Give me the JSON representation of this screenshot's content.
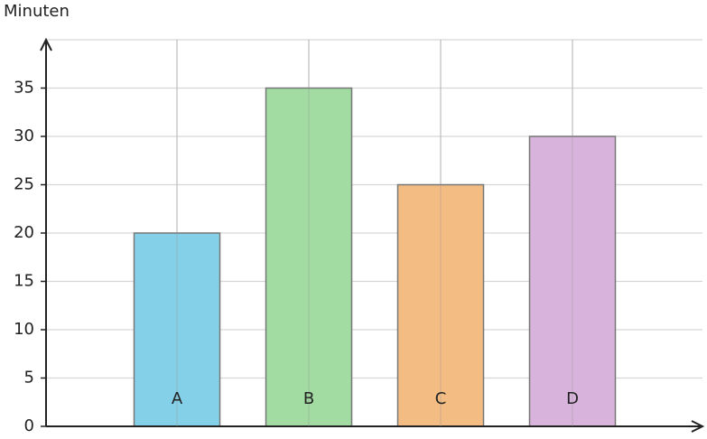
{
  "chart_data": {
    "type": "bar",
    "y_label": "Minuten",
    "categories": [
      "A",
      "B",
      "C",
      "D"
    ],
    "values": [
      20,
      35,
      25,
      30
    ],
    "colors": [
      "#85d0e9",
      "#a2dca2",
      "#f3bc82",
      "#d8b3dc"
    ],
    "ylim": [
      0,
      40
    ],
    "yticks": [
      0,
      5,
      10,
      15,
      20,
      25,
      30,
      35
    ],
    "grid": true
  }
}
